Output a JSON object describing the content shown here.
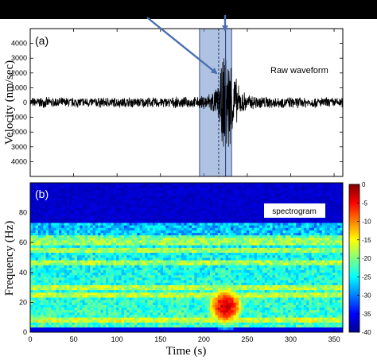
{
  "colors": {
    "top_bar": "#000000",
    "waveform": "#000000",
    "highlight_fill": "#6f8fc8",
    "arrow": "#4a6fb0",
    "background": "#ffffff"
  },
  "chart_data": [
    {
      "type": "line",
      "panel_label": "(a)",
      "annotation": "Raw waveform",
      "ylabel": "Velocity (nm/sec)",
      "ylim": [
        -5000,
        5000
      ],
      "yticks": [
        "4000",
        "3000",
        "2000",
        "1000",
        "0",
        "1000",
        "2000",
        "3000",
        "4000"
      ],
      "xlim": [
        0,
        360
      ],
      "description_of_trace": "background noise about ±400 nm/sec, event between about 200 and 250 s",
      "series": [
        {
          "x": [
            0,
            50,
            100,
            150,
            195,
            205,
            215,
            220,
            225,
            228,
            232,
            240,
            250,
            280,
            320,
            360
          ],
          "amplitude": [
            380,
            380,
            380,
            380,
            420,
            700,
            1100,
            2500,
            4300,
            3900,
            3000,
            1200,
            600,
            420,
            390,
            380
          ]
        }
      ],
      "highlight_window": [
        195,
        232
      ],
      "marker_lines": [
        217,
        225
      ]
    },
    {
      "type": "heatmap",
      "panel_label": "(b)",
      "annotation": "spectrogram",
      "xlabel": "Time (s)",
      "ylabel": "Frequency (Hz)",
      "xlim": [
        0,
        360
      ],
      "ylim": [
        0,
        100
      ],
      "xticks": [
        "0",
        "50",
        "100",
        "150",
        "200",
        "250",
        "300",
        "350"
      ],
      "yticks": [
        "0",
        "20",
        "40",
        "60",
        "80"
      ],
      "colorbar": {
        "min": -40,
        "max": 0,
        "ticks": [
          "0",
          "-5",
          "-10",
          "-15",
          "-20",
          "-25",
          "-30",
          "-35",
          "-40"
        ]
      },
      "features": {
        "noise_ceiling_hz": 70,
        "persistent_bands_hz": [
          8,
          25,
          30,
          47,
          55,
          60,
          63
        ],
        "event_time_s": [
          205,
          245
        ],
        "event_freq_hz": [
          5,
          30
        ],
        "event_peak_db": -3
      }
    }
  ]
}
